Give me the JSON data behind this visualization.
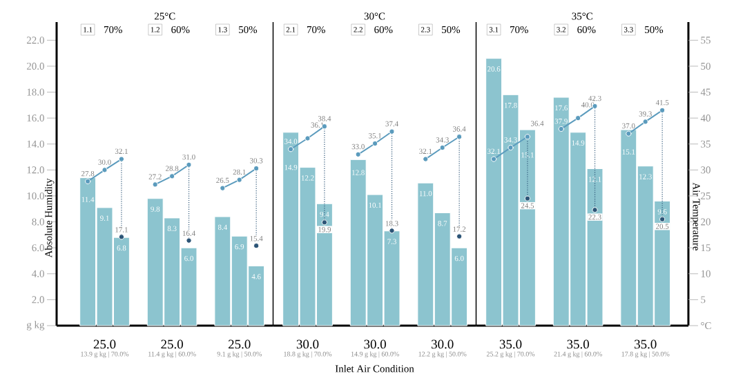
{
  "chart_data": [
    {
      "type": "bar",
      "title": "25°C",
      "ylabel": "Absolute Humidity",
      "categories": [
        null,
        "25.0",
        null,
        null,
        null,
        "25.0",
        null,
        null,
        null,
        "25.0",
        null
      ],
      "ylim": [
        0,
        23.4
      ],
      "yticks": [
        {
          "value": 0,
          "label": "g kg"
        },
        {
          "value": 2,
          "label": "2.0"
        },
        {
          "value": 4,
          "label": "4.0"
        },
        {
          "value": 6,
          "label": "6.0"
        },
        {
          "value": 8,
          "label": "8.0"
        },
        {
          "value": 10,
          "label": "10.0"
        },
        {
          "value": 12,
          "label": "12.0"
        },
        {
          "value": 14,
          "label": "14.0"
        },
        {
          "value": 16,
          "label": "16.0"
        },
        {
          "value": 18,
          "label": "18.0"
        },
        {
          "value": 20,
          "label": "20.0"
        },
        {
          "value": 22,
          "label": "22.0"
        }
      ],
      "tick_labels": "xy",
      "marker": "circle",
      "series": [
        {
          "color": "#8cc4cf",
          "values": [
            11.4,
            9.1,
            6.8,
            null,
            9.8,
            8.3,
            6.0,
            null,
            8.4,
            6.9,
            4.6
          ],
          "value_labels": [
            "11.4",
            "9.1",
            "6.8",
            null,
            "9.8",
            "8.3",
            "6.0",
            null,
            "8.4",
            "6.9",
            "4.6"
          ]
        },
        {
          "type": "line",
          "axis": "y2",
          "color": "#5b9bbd",
          "values": [
            27.8,
            30.0,
            32.1,
            null,
            null,
            null,
            null,
            null,
            null,
            null,
            null
          ],
          "value_labels": [
            "27.8",
            "30.0",
            "32.1",
            null,
            null,
            null,
            null,
            null,
            null,
            null,
            null
          ]
        },
        {
          "type": "line",
          "axis": "y2",
          "color": "#5b9bbd",
          "values": [
            null,
            null,
            null,
            null,
            27.2,
            28.8,
            31.0,
            null,
            null,
            null,
            null
          ],
          "value_labels": [
            null,
            null,
            null,
            null,
            "27.2",
            "28.8",
            "31.0",
            null,
            null,
            null,
            null
          ]
        },
        {
          "type": "line",
          "axis": "y2",
          "color": "#5b9bbd",
          "values": [
            null,
            null,
            null,
            null,
            null,
            null,
            null,
            null,
            26.5,
            28.1,
            30.3
          ],
          "value_labels": [
            null,
            null,
            null,
            null,
            null,
            null,
            null,
            null,
            "26.5",
            "28.1",
            "30.3"
          ]
        },
        {
          "type": "scatter",
          "axis": "y2",
          "color": "#2d5577",
          "values": [
            null,
            null,
            17.1,
            null,
            null,
            null,
            16.4,
            null,
            null,
            null,
            15.4
          ],
          "value_labels": [
            null,
            null,
            "17.1",
            null,
            null,
            null,
            "16.4",
            null,
            null,
            null,
            "15.4"
          ]
        }
      ],
      "annotations": [
        "1.1",
        "70%",
        "1.2",
        "60%",
        "1.3",
        "50%",
        "13.9 g kg | 70.0%",
        "11.4 g kg | 60.0%",
        "9.1 g kg | 50.0%"
      ]
    },
    {
      "type": "bar",
      "title": "30°C",
      "xlabel": "Inlet Air Condition",
      "categories": [
        null,
        "30.0",
        null,
        null,
        null,
        "30.0",
        null,
        null,
        null,
        "30.0",
        null
      ],
      "ylim": [
        0,
        23.4
      ],
      "tick_labels": "x",
      "marker": "circle",
      "series": [
        {
          "color": "#8cc4cf",
          "values": [
            14.9,
            12.2,
            9.4,
            null,
            12.8,
            10.1,
            7.3,
            null,
            11.0,
            8.7,
            6.0
          ],
          "value_labels": [
            "14.9",
            "12.2",
            "9.4",
            null,
            "12.8",
            "10.1",
            "7.3",
            null,
            "11.0",
            "8.7",
            "6.0"
          ]
        },
        {
          "type": "line",
          "axis": "y2",
          "color": "#5b9bbd",
          "values": [
            34.0,
            36.1,
            38.4,
            null,
            null,
            null,
            null,
            null,
            null,
            null,
            null
          ],
          "value_labels": [
            "34.0",
            "36.1",
            "38.4",
            null,
            null,
            null,
            null,
            null,
            null,
            null,
            null
          ]
        },
        {
          "type": "line",
          "axis": "y2",
          "color": "#5b9bbd",
          "values": [
            null,
            null,
            null,
            null,
            33.0,
            35.1,
            37.4,
            null,
            null,
            null,
            null
          ],
          "value_labels": [
            null,
            null,
            null,
            null,
            "33.0",
            "35.1",
            "37.4",
            null,
            null,
            null,
            null
          ]
        },
        {
          "type": "line",
          "axis": "y2",
          "color": "#5b9bbd",
          "values": [
            null,
            null,
            null,
            null,
            null,
            null,
            null,
            null,
            32.1,
            34.3,
            36.4
          ],
          "value_labels": [
            null,
            null,
            null,
            null,
            null,
            null,
            null,
            null,
            "32.1",
            "34.3",
            "36.4"
          ]
        },
        {
          "type": "scatter",
          "axis": "y2",
          "color": "#2d5577",
          "values": [
            null,
            null,
            19.9,
            null,
            null,
            null,
            18.3,
            null,
            null,
            null,
            17.2
          ],
          "value_labels": [
            null,
            null,
            "19.9",
            null,
            null,
            null,
            "18.3",
            null,
            null,
            null,
            "17.2"
          ]
        }
      ],
      "annotations": [
        "2.1",
        "70%",
        "2.2",
        "60%",
        "2.3",
        "50%",
        "18.8 g kg | 70.0%",
        "14.9 g kg | 60.0%",
        "12.2 g kg | 50.0%"
      ]
    },
    {
      "type": "bar",
      "title": "35°C",
      "y2label": "Air Temperature",
      "categories": [
        null,
        "35.0",
        null,
        null,
        null,
        "35.0",
        null,
        null,
        null,
        "35.0",
        null
      ],
      "ylim": [
        0,
        23.4
      ],
      "y2lim": [
        0,
        58.5
      ],
      "y2ticks": [
        {
          "value": 0,
          "label": "°C"
        },
        5,
        10,
        15,
        20,
        25,
        30,
        35,
        40,
        45,
        50,
        55
      ],
      "tick_labels": "xy2",
      "marker": "circle",
      "series": [
        {
          "color": "#8cc4cf",
          "values": [
            20.6,
            17.8,
            15.1,
            null,
            17.6,
            14.9,
            12.1,
            null,
            15.1,
            12.3,
            9.6
          ],
          "value_labels": [
            "20.6",
            "17.8",
            "15.1",
            null,
            "17.6",
            "14.9",
            "12.1",
            null,
            "15.1",
            "12.3",
            "9.6"
          ]
        },
        {
          "type": "line",
          "axis": "y2",
          "color": "#5b9bbd",
          "values": [
            32.1,
            34.3,
            36.4,
            null,
            null,
            null,
            null,
            null,
            null,
            null,
            null
          ],
          "value_labels": [
            "32.1",
            "34.3",
            "36.4",
            null,
            null,
            null,
            null,
            null,
            null,
            null,
            null
          ]
        },
        {
          "type": "line",
          "axis": "y2",
          "color": "#5b9bbd",
          "values": [
            null,
            null,
            null,
            null,
            37.9,
            40.0,
            42.3,
            null,
            null,
            null,
            null
          ],
          "value_labels": [
            null,
            null,
            null,
            null,
            "37.9",
            "40.0",
            "42.3",
            null,
            null,
            null,
            null
          ]
        },
        {
          "type": "line",
          "axis": "y2",
          "color": "#5b9bbd",
          "values": [
            null,
            null,
            null,
            null,
            null,
            null,
            null,
            null,
            37.0,
            39.3,
            41.5
          ],
          "value_labels": [
            null,
            null,
            null,
            null,
            null,
            null,
            null,
            null,
            "37.0",
            "39.3",
            "41.5"
          ]
        },
        {
          "type": "scatter",
          "axis": "y2",
          "color": "#2d5577",
          "values": [
            null,
            null,
            24.5,
            null,
            null,
            null,
            22.3,
            null,
            null,
            null,
            20.5
          ],
          "value_labels": [
            null,
            null,
            "24.5",
            null,
            null,
            null,
            "22.3",
            null,
            null,
            null,
            "20.5"
          ]
        }
      ],
      "annotations": [
        "3.1",
        "70%",
        "3.2",
        "60%",
        "3.3",
        "50%",
        "25.2 g kg | 70.0%",
        "21.4 g kg | 60.0%",
        "17.8 g kg | 50.0%"
      ]
    }
  ]
}
